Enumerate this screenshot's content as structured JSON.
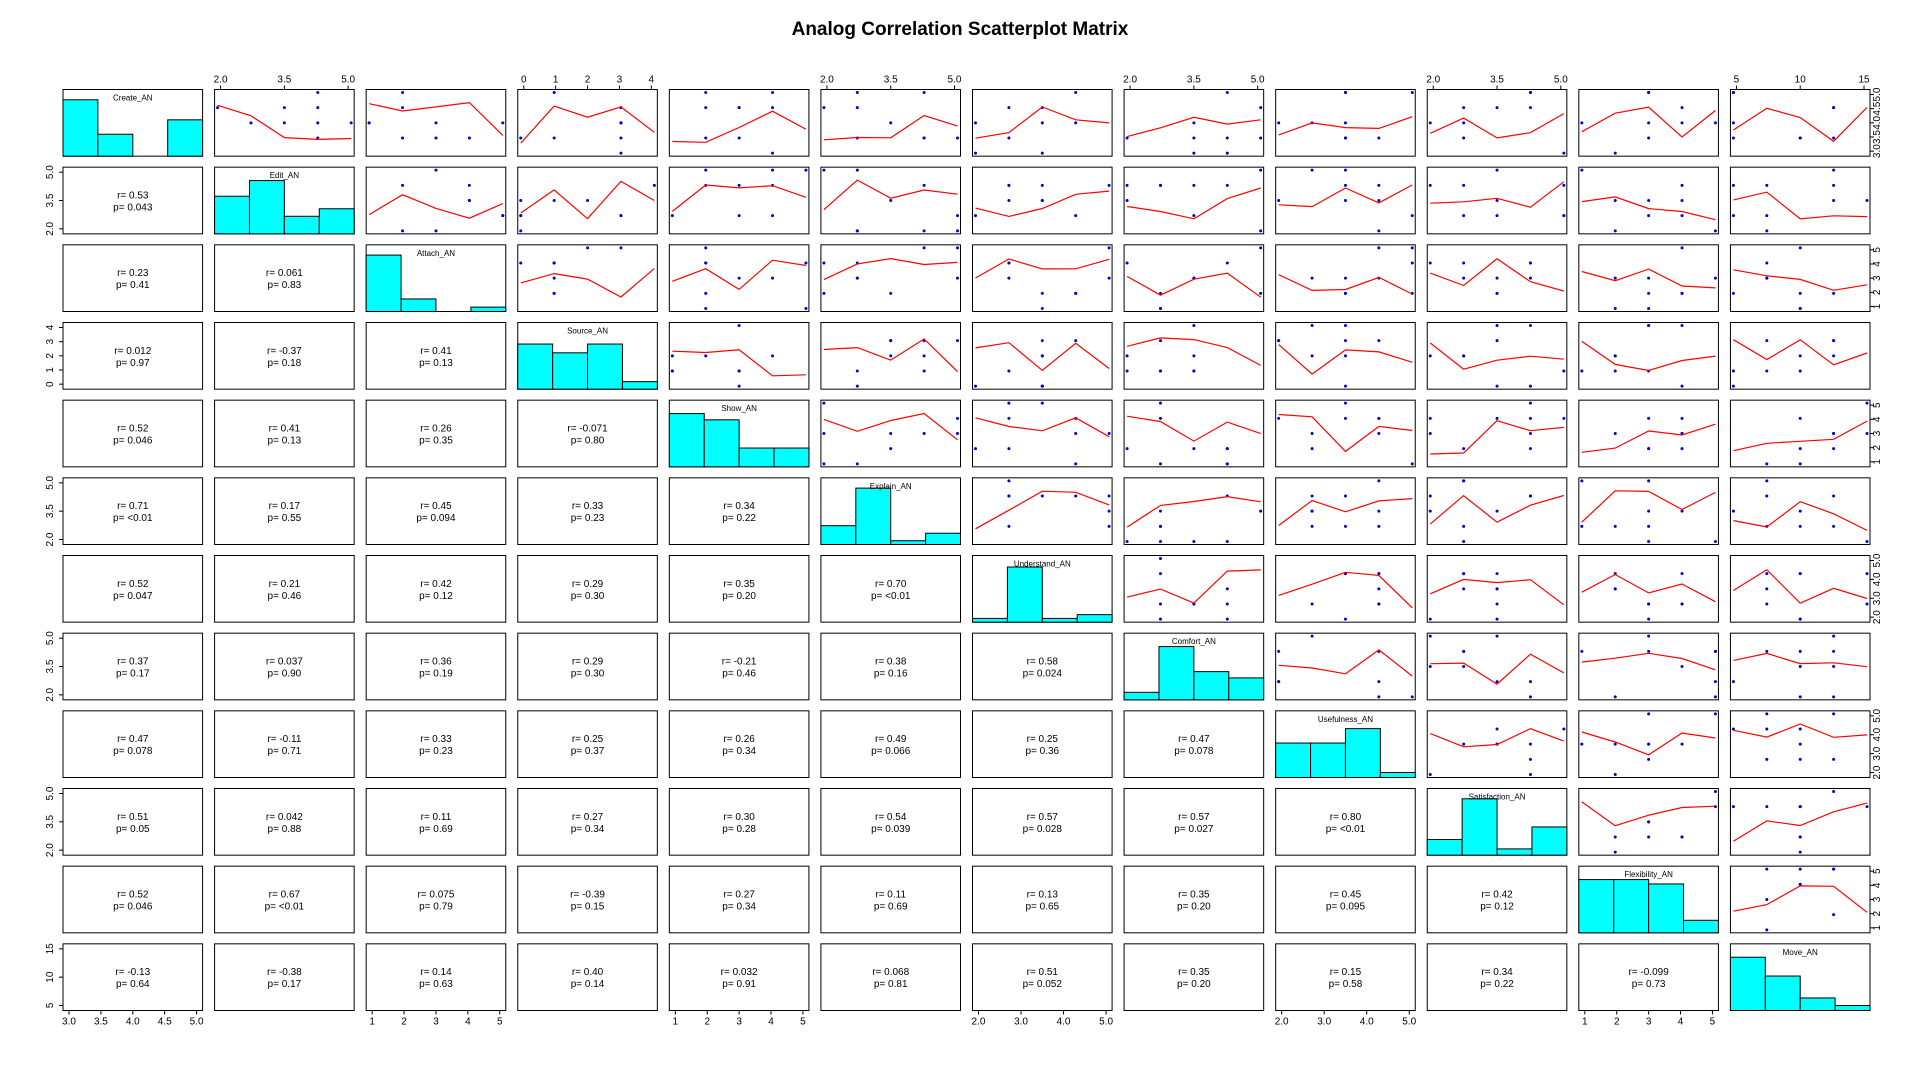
{
  "chart_data": {
    "type": "scatterplot-matrix",
    "title": "Analog Correlation Scatterplot Matrix",
    "variables": [
      "Create_AN",
      "Edit_AN",
      "Attach_AN",
      "Source_AN",
      "Show_AN",
      "Explain_AN",
      "Understand_AN",
      "Comfort_AN",
      "Usefulness_AN",
      "Satisfaction_AN",
      "Flexibility_AN",
      "Move_AN"
    ],
    "ranges": [
      [
        3,
        5
      ],
      [
        2,
        5
      ],
      [
        1,
        5
      ],
      [
        0,
        4
      ],
      [
        1,
        5
      ],
      [
        2,
        5
      ],
      [
        2,
        5
      ],
      [
        2,
        5
      ],
      [
        2,
        5
      ],
      [
        2,
        5
      ],
      [
        1,
        5
      ],
      [
        1,
        16
      ]
    ],
    "ticks": [
      [
        "3.0",
        "3.5",
        "4.0",
        "4.5",
        "5.0"
      ],
      [
        "2.0",
        "3.5",
        "5.0"
      ],
      [
        "1",
        "2",
        "3",
        "4",
        "5"
      ],
      [
        "0",
        "1",
        "2",
        "3",
        "4"
      ],
      [
        "1",
        "2",
        "3",
        "4",
        "5"
      ],
      [
        "2.0",
        "3.5",
        "5.0"
      ],
      [
        "2.0",
        "3.0",
        "4.0",
        "5.0"
      ],
      [
        "2.0",
        "3.5",
        "5.0"
      ],
      [
        "2.0",
        "3.0",
        "4.0",
        "5.0"
      ],
      [
        "2.0",
        "3.5",
        "5.0"
      ],
      [
        "1",
        "2",
        "3",
        "4",
        "5"
      ],
      [
        "5",
        "10",
        "15"
      ]
    ],
    "histograms": [
      [
        0.9,
        0.35,
        0,
        0.58
      ],
      [
        0.6,
        0.85,
        0.28,
        0.4
      ],
      [
        0.9,
        0.2,
        0,
        0.07
      ],
      [
        0.72,
        0.58,
        0.72,
        0.12
      ],
      [
        0.85,
        0.75,
        0.3,
        0.3
      ],
      [
        0.3,
        0.9,
        0.06,
        0.18
      ],
      [
        0.06,
        0.88,
        0.06,
        0.12
      ],
      [
        0.12,
        0.85,
        0.45,
        0.35
      ],
      [
        0.55,
        0.55,
        0.78,
        0.08
      ],
      [
        0.25,
        0.9,
        0.1,
        0.45
      ],
      [
        0.85,
        0.85,
        0.78,
        0.2
      ],
      [
        0.85,
        0.55,
        0.2,
        0.08
      ]
    ],
    "correlations": [
      {
        "row": 2,
        "col": 1,
        "r": "0.53",
        "p": "0.043"
      },
      {
        "row": 3,
        "col": 1,
        "r": "0.23",
        "p": "0.41"
      },
      {
        "row": 3,
        "col": 2,
        "r": "0.061",
        "p": "0.83"
      },
      {
        "row": 4,
        "col": 1,
        "r": "0.012",
        "p": "0.97"
      },
      {
        "row": 4,
        "col": 2,
        "r": "-0.37",
        "p": "0.18"
      },
      {
        "row": 4,
        "col": 3,
        "r": "0.41",
        "p": "0.13"
      },
      {
        "row": 5,
        "col": 1,
        "r": "0.52",
        "p": "0.046"
      },
      {
        "row": 5,
        "col": 2,
        "r": "0.41",
        "p": "0.13"
      },
      {
        "row": 5,
        "col": 3,
        "r": "0.26",
        "p": "0.35"
      },
      {
        "row": 5,
        "col": 4,
        "r": "-0.071",
        "p": "0.80"
      },
      {
        "row": 6,
        "col": 1,
        "r": "0.71",
        "p": "<0.01"
      },
      {
        "row": 6,
        "col": 2,
        "r": "0.17",
        "p": "0.55"
      },
      {
        "row": 6,
        "col": 3,
        "r": "0.45",
        "p": "0.094"
      },
      {
        "row": 6,
        "col": 4,
        "r": "0.33",
        "p": "0.23"
      },
      {
        "row": 6,
        "col": 5,
        "r": "0.34",
        "p": "0.22"
      },
      {
        "row": 7,
        "col": 1,
        "r": "0.52",
        "p": "0.047"
      },
      {
        "row": 7,
        "col": 2,
        "r": "0.21",
        "p": "0.46"
      },
      {
        "row": 7,
        "col": 3,
        "r": "0.42",
        "p": "0.12"
      },
      {
        "row": 7,
        "col": 4,
        "r": "0.29",
        "p": "0.30"
      },
      {
        "row": 7,
        "col": 5,
        "r": "0.35",
        "p": "0.20"
      },
      {
        "row": 7,
        "col": 6,
        "r": "0.70",
        "p": "<0.01"
      },
      {
        "row": 8,
        "col": 1,
        "r": "0.37",
        "p": "0.17"
      },
      {
        "row": 8,
        "col": 2,
        "r": "0.037",
        "p": "0.90"
      },
      {
        "row": 8,
        "col": 3,
        "r": "0.36",
        "p": "0.19"
      },
      {
        "row": 8,
        "col": 4,
        "r": "0.29",
        "p": "0.30"
      },
      {
        "row": 8,
        "col": 5,
        "r": "-0.21",
        "p": "0.46"
      },
      {
        "row": 8,
        "col": 6,
        "r": "0.38",
        "p": "0.16"
      },
      {
        "row": 8,
        "col": 7,
        "r": "0.58",
        "p": "0.024"
      },
      {
        "row": 9,
        "col": 1,
        "r": "0.47",
        "p": "0.078"
      },
      {
        "row": 9,
        "col": 2,
        "r": "-0.11",
        "p": "0.71"
      },
      {
        "row": 9,
        "col": 3,
        "r": "0.33",
        "p": "0.23"
      },
      {
        "row": 9,
        "col": 4,
        "r": "0.25",
        "p": "0.37"
      },
      {
        "row": 9,
        "col": 5,
        "r": "0.26",
        "p": "0.34"
      },
      {
        "row": 9,
        "col": 6,
        "r": "0.49",
        "p": "0.066"
      },
      {
        "row": 9,
        "col": 7,
        "r": "0.25",
        "p": "0.36"
      },
      {
        "row": 9,
        "col": 8,
        "r": "0.47",
        "p": "0.078"
      },
      {
        "row": 10,
        "col": 1,
        "r": "0.51",
        "p": "0.05"
      },
      {
        "row": 10,
        "col": 2,
        "r": "0.042",
        "p": "0.88"
      },
      {
        "row": 10,
        "col": 3,
        "r": "0.11",
        "p": "0.69"
      },
      {
        "row": 10,
        "col": 4,
        "r": "0.27",
        "p": "0.34"
      },
      {
        "row": 10,
        "col": 5,
        "r": "0.30",
        "p": "0.28"
      },
      {
        "row": 10,
        "col": 6,
        "r": "0.54",
        "p": "0.039"
      },
      {
        "row": 10,
        "col": 7,
        "r": "0.57",
        "p": "0.028"
      },
      {
        "row": 10,
        "col": 8,
        "r": "0.57",
        "p": "0.027"
      },
      {
        "row": 10,
        "col": 9,
        "r": "0.80",
        "p": "<0.01"
      },
      {
        "row": 11,
        "col": 1,
        "r": "0.52",
        "p": "0.046"
      },
      {
        "row": 11,
        "col": 2,
        "r": "0.67",
        "p": "<0.01"
      },
      {
        "row": 11,
        "col": 3,
        "r": "0.075",
        "p": "0.79"
      },
      {
        "row": 11,
        "col": 4,
        "r": "-0.39",
        "p": "0.15"
      },
      {
        "row": 11,
        "col": 5,
        "r": "0.27",
        "p": "0.34"
      },
      {
        "row": 11,
        "col": 6,
        "r": "0.11",
        "p": "0.69"
      },
      {
        "row": 11,
        "col": 7,
        "r": "0.13",
        "p": "0.65"
      },
      {
        "row": 11,
        "col": 8,
        "r": "0.35",
        "p": "0.20"
      },
      {
        "row": 11,
        "col": 9,
        "r": "0.45",
        "p": "0.095"
      },
      {
        "row": 11,
        "col": 10,
        "r": "0.42",
        "p": "0.12"
      },
      {
        "row": 12,
        "col": 1,
        "r": "-0.13",
        "p": "0.64"
      },
      {
        "row": 12,
        "col": 2,
        "r": "-0.38",
        "p": "0.17"
      },
      {
        "row": 12,
        "col": 3,
        "r": "0.14",
        "p": "0.63"
      },
      {
        "row": 12,
        "col": 4,
        "r": "0.40",
        "p": "0.14"
      },
      {
        "row": 12,
        "col": 5,
        "r": "0.032",
        "p": "0.91"
      },
      {
        "row": 12,
        "col": 6,
        "r": "0.068",
        "p": "0.81"
      },
      {
        "row": 12,
        "col": 7,
        "r": "0.51",
        "p": "0.052"
      },
      {
        "row": 12,
        "col": 8,
        "r": "0.35",
        "p": "0.20"
      },
      {
        "row": 12,
        "col": 9,
        "r": "0.15",
        "p": "0.58"
      },
      {
        "row": 12,
        "col": 10,
        "r": "0.34",
        "p": "0.22"
      },
      {
        "row": 12,
        "col": 11,
        "r": "-0.099",
        "p": "0.73"
      }
    ],
    "colors": {
      "histogram_fill": "#00ffff",
      "points": "#0000cc",
      "smooth_line": "#ff0000",
      "frame": "#000000"
    }
  }
}
